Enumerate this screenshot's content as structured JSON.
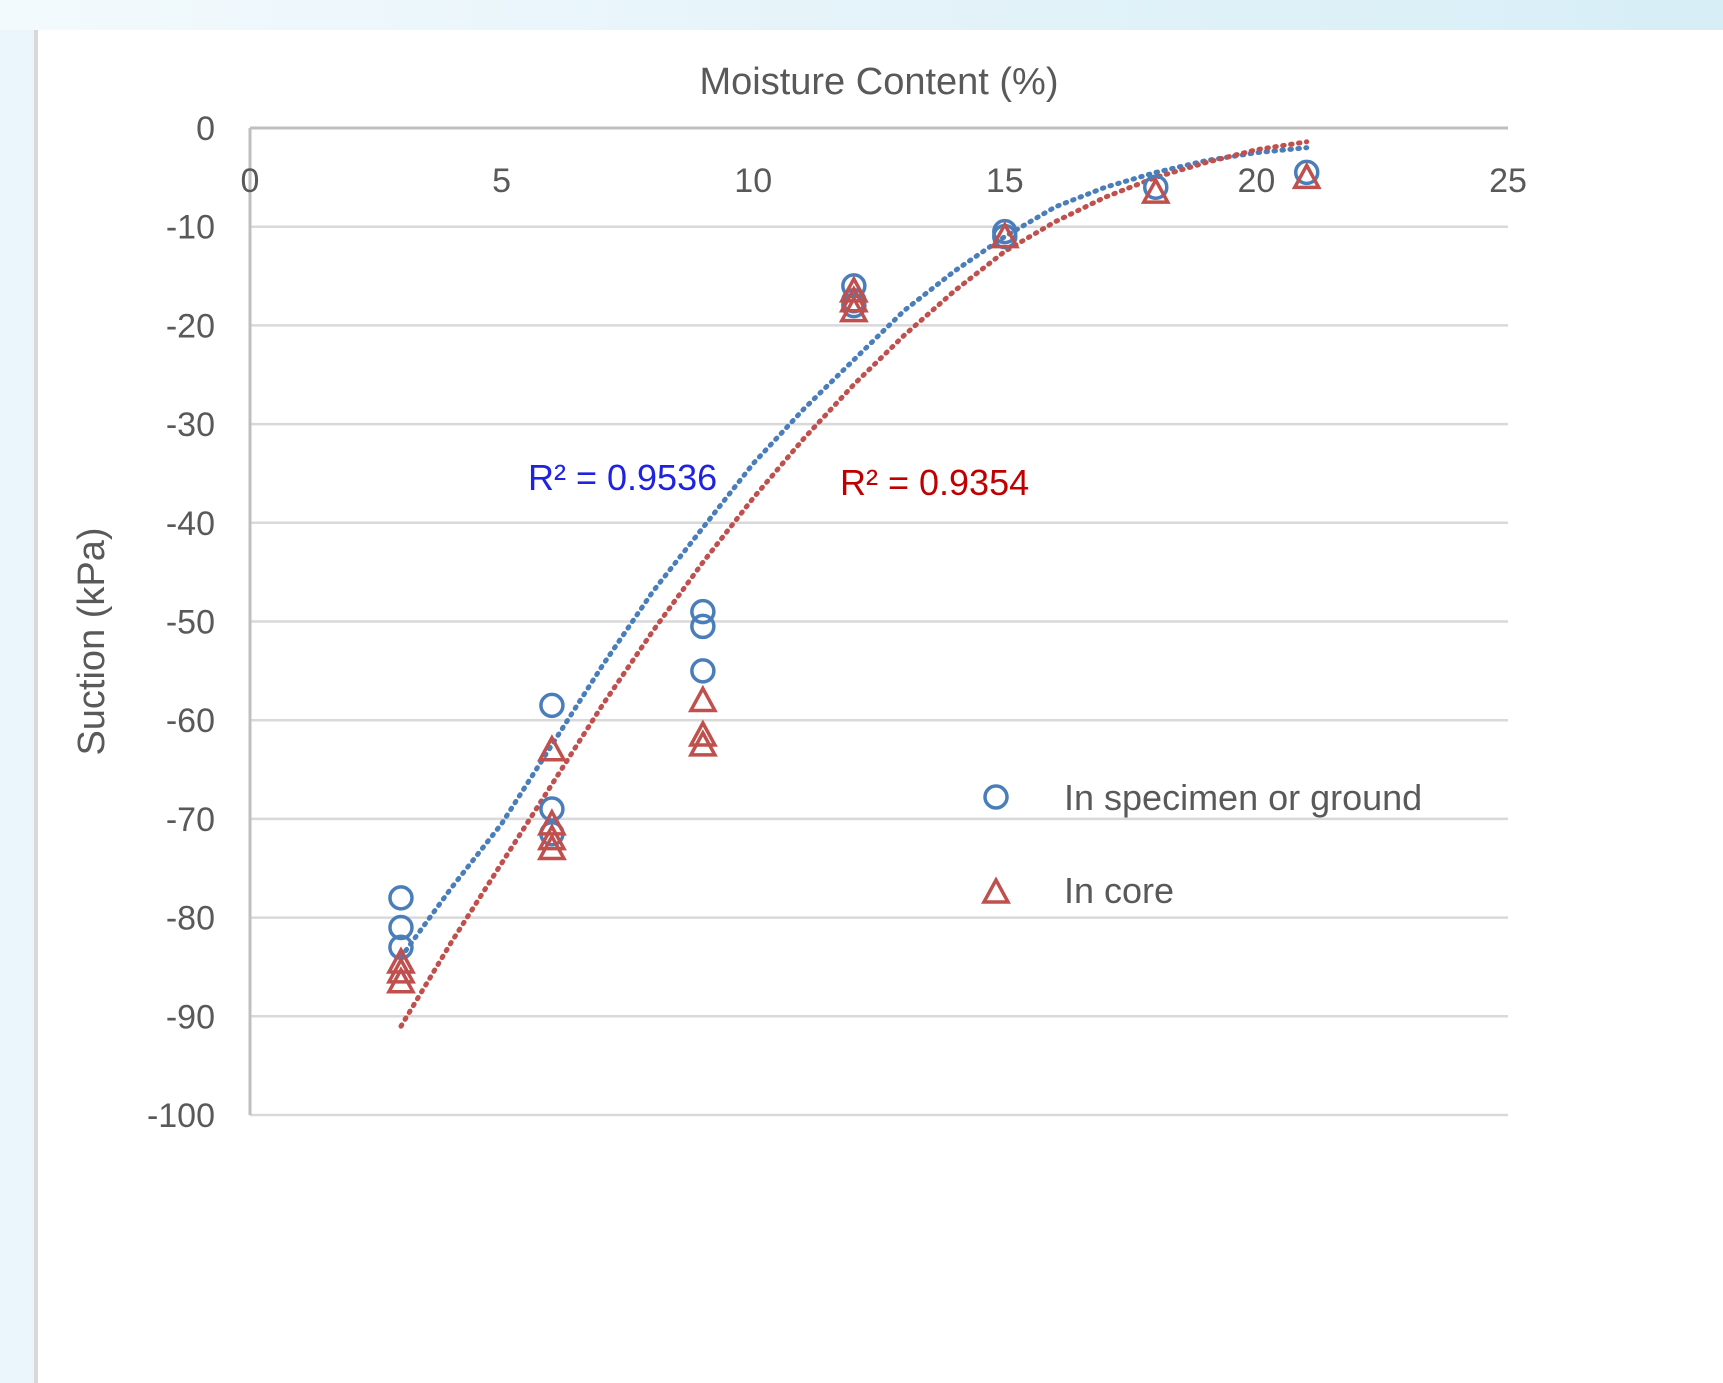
{
  "colors": {
    "series_blue": "#4a7ebb",
    "series_red": "#c0504d",
    "annot_blue": "#1f23e0",
    "annot_red": "#c00000",
    "grid": "#d9d9d9",
    "axis": "#bfbfbf",
    "text": "#595959"
  },
  "chart_data": {
    "type": "scatter",
    "title": "",
    "xlabel": "Moisture Content (%)",
    "ylabel": "Suction (kPa)",
    "xlim": [
      0,
      25
    ],
    "ylim": [
      -100,
      0
    ],
    "x_ticks": [
      0,
      5,
      10,
      15,
      20,
      25
    ],
    "y_ticks": [
      0,
      -10,
      -20,
      -30,
      -40,
      -50,
      -60,
      -70,
      -80,
      -90,
      -100
    ],
    "grid": true,
    "x_axis_position": "top",
    "legend_position": "right",
    "series": [
      {
        "name": "In specimen or ground",
        "marker": "circle",
        "color": "#4a7ebb",
        "points": [
          {
            "x": 3,
            "y": -78
          },
          {
            "x": 3,
            "y": -81
          },
          {
            "x": 3,
            "y": -83
          },
          {
            "x": 6,
            "y": -58.5
          },
          {
            "x": 6,
            "y": -69
          },
          {
            "x": 6,
            "y": -71.5
          },
          {
            "x": 9,
            "y": -49
          },
          {
            "x": 9,
            "y": -50.5
          },
          {
            "x": 9,
            "y": -55
          },
          {
            "x": 12,
            "y": -16
          },
          {
            "x": 12,
            "y": -17.5
          },
          {
            "x": 12,
            "y": -18
          },
          {
            "x": 15,
            "y": -10.5
          },
          {
            "x": 15,
            "y": -11
          },
          {
            "x": 18,
            "y": -6
          },
          {
            "x": 21,
            "y": -4.5
          }
        ],
        "trendline": {
          "type": "polynomial",
          "style": "dotted",
          "r2_label": "R² = 0.9536",
          "points": [
            {
              "x": 3,
              "y": -84
            },
            {
              "x": 4,
              "y": -77
            },
            {
              "x": 5,
              "y": -70.5
            },
            {
              "x": 6,
              "y": -62.5
            },
            {
              "x": 7,
              "y": -54.5
            },
            {
              "x": 8,
              "y": -47
            },
            {
              "x": 9,
              "y": -40.5
            },
            {
              "x": 10,
              "y": -34
            },
            {
              "x": 11,
              "y": -28.5
            },
            {
              "x": 12,
              "y": -23.5
            },
            {
              "x": 13,
              "y": -18.5
            },
            {
              "x": 14,
              "y": -14.5
            },
            {
              "x": 15,
              "y": -11
            },
            {
              "x": 16,
              "y": -8
            },
            {
              "x": 17,
              "y": -6
            },
            {
              "x": 18,
              "y": -4.5
            },
            {
              "x": 19,
              "y": -3.3
            },
            {
              "x": 20,
              "y": -2.5
            },
            {
              "x": 21,
              "y": -2
            }
          ]
        }
      },
      {
        "name": "In core",
        "marker": "triangle",
        "color": "#c0504d",
        "points": [
          {
            "x": 3,
            "y": -84.5
          },
          {
            "x": 3,
            "y": -85.5
          },
          {
            "x": 3,
            "y": -86.5
          },
          {
            "x": 6,
            "y": -63
          },
          {
            "x": 6,
            "y": -70.5
          },
          {
            "x": 6,
            "y": -72
          },
          {
            "x": 6,
            "y": -73
          },
          {
            "x": 9,
            "y": -58
          },
          {
            "x": 9,
            "y": -61.5
          },
          {
            "x": 9,
            "y": -62.5
          },
          {
            "x": 12,
            "y": -16.5
          },
          {
            "x": 12,
            "y": -17.5
          },
          {
            "x": 12,
            "y": -18.5
          },
          {
            "x": 15,
            "y": -11
          },
          {
            "x": 18,
            "y": -6.5
          },
          {
            "x": 21,
            "y": -5
          }
        ],
        "trendline": {
          "type": "polynomial",
          "style": "dotted",
          "r2_label": "R² = 0.9354",
          "points": [
            {
              "x": 3,
              "y": -91
            },
            {
              "x": 4,
              "y": -82.5
            },
            {
              "x": 5,
              "y": -74.5
            },
            {
              "x": 6,
              "y": -66.5
            },
            {
              "x": 7,
              "y": -58.5
            },
            {
              "x": 8,
              "y": -51
            },
            {
              "x": 9,
              "y": -44
            },
            {
              "x": 10,
              "y": -37.5
            },
            {
              "x": 11,
              "y": -31.5
            },
            {
              "x": 12,
              "y": -26
            },
            {
              "x": 13,
              "y": -21
            },
            {
              "x": 14,
              "y": -16.5
            },
            {
              "x": 15,
              "y": -12.5
            },
            {
              "x": 16,
              "y": -9.5
            },
            {
              "x": 17,
              "y": -7
            },
            {
              "x": 18,
              "y": -5
            },
            {
              "x": 19,
              "y": -3.5
            },
            {
              "x": 20,
              "y": -2.2
            },
            {
              "x": 21,
              "y": -1.4
            }
          ]
        }
      }
    ]
  }
}
